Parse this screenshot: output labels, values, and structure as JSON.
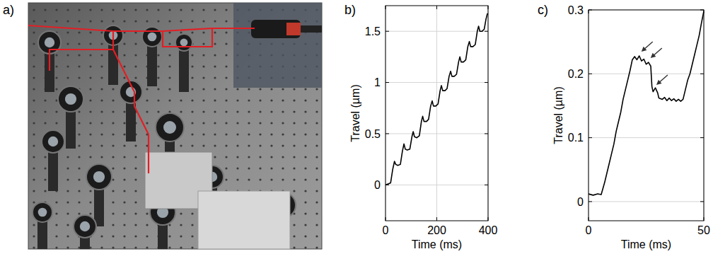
{
  "photo": {
    "panel_label": "a)"
  },
  "chart_data": [
    {
      "type": "line",
      "panel_label": "b)",
      "x_label": "Time (ms)",
      "y_label": "Travel (µm)",
      "color": "#000000",
      "grid": true,
      "xlim": [
        0,
        400
      ],
      "xticks": [
        0,
        200,
        400
      ],
      "ylim": [
        -0.35,
        1.75
      ],
      "yticks": [
        0,
        0.5,
        1,
        1.5
      ],
      "x": [
        0,
        10,
        20,
        28,
        35,
        40,
        48,
        58,
        66,
        72,
        77,
        85,
        95,
        103,
        108,
        113,
        122,
        132,
        140,
        145,
        150,
        160,
        168,
        176,
        182,
        187,
        196,
        205,
        213,
        218,
        223,
        232,
        240,
        248,
        254,
        259,
        268,
        277,
        285,
        290,
        295,
        304,
        313,
        321,
        327,
        332,
        341,
        350,
        358,
        363,
        368,
        377,
        385,
        392,
        397,
        400
      ],
      "values": [
        0.0,
        0.01,
        0.02,
        0.15,
        0.23,
        0.2,
        0.19,
        0.2,
        0.33,
        0.4,
        0.35,
        0.34,
        0.35,
        0.47,
        0.52,
        0.47,
        0.46,
        0.48,
        0.62,
        0.67,
        0.62,
        0.62,
        0.64,
        0.77,
        0.82,
        0.77,
        0.77,
        0.79,
        0.92,
        0.97,
        0.92,
        0.92,
        0.94,
        1.06,
        1.11,
        1.06,
        1.06,
        1.08,
        1.2,
        1.25,
        1.2,
        1.2,
        1.22,
        1.35,
        1.4,
        1.35,
        1.35,
        1.37,
        1.5,
        1.55,
        1.5,
        1.5,
        1.52,
        1.62,
        1.67,
        1.67
      ]
    },
    {
      "type": "line",
      "panel_label": "c)",
      "x_label": "Time (ms)",
      "y_label": "Travel (µm)",
      "color": "#000000",
      "grid": true,
      "xlim": [
        0,
        50
      ],
      "xticks": [
        0,
        50
      ],
      "ylim": [
        -0.03,
        0.3
      ],
      "yticks": [
        0,
        0.1,
        0.2,
        0.3
      ],
      "x": [
        0,
        2,
        4,
        5.5,
        7,
        8,
        9,
        10,
        11,
        12,
        13,
        14,
        15,
        16,
        17,
        18,
        19,
        20,
        21,
        22,
        23,
        24,
        25,
        26,
        27,
        27.5,
        28,
        29,
        30,
        30.5,
        32,
        33,
        34,
        35,
        36,
        37,
        38,
        39,
        40,
        41,
        42,
        43,
        44,
        45,
        46,
        47,
        48,
        49,
        50
      ],
      "values": [
        0.012,
        0.01,
        0.012,
        0.011,
        0.03,
        0.045,
        0.06,
        0.075,
        0.09,
        0.11,
        0.125,
        0.14,
        0.16,
        0.175,
        0.19,
        0.205,
        0.222,
        0.227,
        0.222,
        0.228,
        0.22,
        0.223,
        0.215,
        0.218,
        0.212,
        0.18,
        0.172,
        0.178,
        0.17,
        0.162,
        0.16,
        0.163,
        0.158,
        0.162,
        0.158,
        0.161,
        0.157,
        0.16,
        0.157,
        0.16,
        0.175,
        0.19,
        0.2,
        0.215,
        0.23,
        0.245,
        0.26,
        0.28,
        0.298
      ],
      "arrows": [
        {
          "x": 22,
          "y": 0.228
        },
        {
          "x": 26,
          "y": 0.218
        },
        {
          "x": 28.5,
          "y": 0.176
        }
      ]
    }
  ]
}
